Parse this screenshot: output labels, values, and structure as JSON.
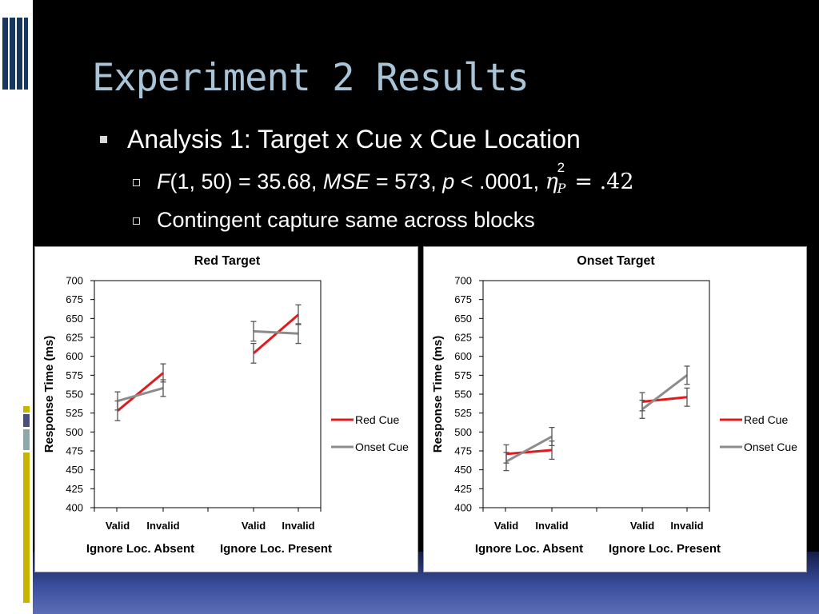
{
  "slide": {
    "title": "Experiment 2 Results",
    "bullet1": "Analysis 1: Target x Cue x Cue Location",
    "sub1": {
      "f_label": "F",
      "f_args": "(1, 50) = 35.68, ",
      "mse_label": "MSE",
      "mse_value": " = 573, ",
      "p_label": "p",
      "p_value": " < .0001, ",
      "eta": "η",
      "eta_sup": "2",
      "eta_sub": "P",
      "eta_value": " = .42"
    },
    "sub2": "Contingent capture same across blocks"
  },
  "colors": {
    "red_cue": "#e31a1c",
    "onset_cue": "#8c8c8c",
    "title_blue": "#a7c4d8",
    "stripe_yellow": "#c8b400",
    "stripe_teal": "#8fa9aa",
    "stripe_navy": "#4b4f7a"
  },
  "chart_data": [
    {
      "type": "line",
      "title": "Red Target",
      "ylabel": "Response Time (ms)",
      "ylim": [
        400,
        700
      ],
      "yticks": [
        400,
        425,
        450,
        475,
        500,
        525,
        550,
        575,
        600,
        625,
        650,
        675,
        700
      ],
      "groups": [
        {
          "label": "Ignore Loc. Absent",
          "categories": [
            "Valid",
            "Invalid"
          ]
        },
        {
          "label": "Ignore Loc. Present",
          "categories": [
            "Valid",
            "Invalid"
          ]
        }
      ],
      "legend": "right",
      "series": [
        {
          "name": "Red Cue",
          "color": "#e31a1c",
          "values": [
            [
              528,
              578
            ],
            [
              604,
              655
            ]
          ],
          "errors": [
            [
              13,
              12
            ],
            [
              13,
              13
            ]
          ]
        },
        {
          "name": "Onset Cue",
          "color": "#8c8c8c",
          "values": [
            [
              541,
              558
            ],
            [
              633,
              630
            ]
          ],
          "errors": [
            [
              12,
              11
            ],
            [
              13,
              13
            ]
          ]
        }
      ]
    },
    {
      "type": "line",
      "title": "Onset Target",
      "ylabel": "Response Time (ms)",
      "ylim": [
        400,
        700
      ],
      "yticks": [
        400,
        425,
        450,
        475,
        500,
        525,
        550,
        575,
        600,
        625,
        650,
        675,
        700
      ],
      "groups": [
        {
          "label": "Ignore Loc. Absent",
          "categories": [
            "Valid",
            "Invalid"
          ]
        },
        {
          "label": "Ignore Loc. Present",
          "categories": [
            "Valid",
            "Invalid"
          ]
        }
      ],
      "legend": "right",
      "series": [
        {
          "name": "Red Cue",
          "color": "#e31a1c",
          "values": [
            [
              471,
              476
            ],
            [
              540,
              546
            ]
          ],
          "errors": [
            [
              12,
              12
            ],
            [
              12,
              12
            ]
          ]
        },
        {
          "name": "Onset Cue",
          "color": "#8c8c8c",
          "values": [
            [
              461,
              494
            ],
            [
              530,
              575
            ]
          ],
          "errors": [
            [
              12,
              12
            ],
            [
              12,
              12
            ]
          ]
        }
      ]
    }
  ]
}
